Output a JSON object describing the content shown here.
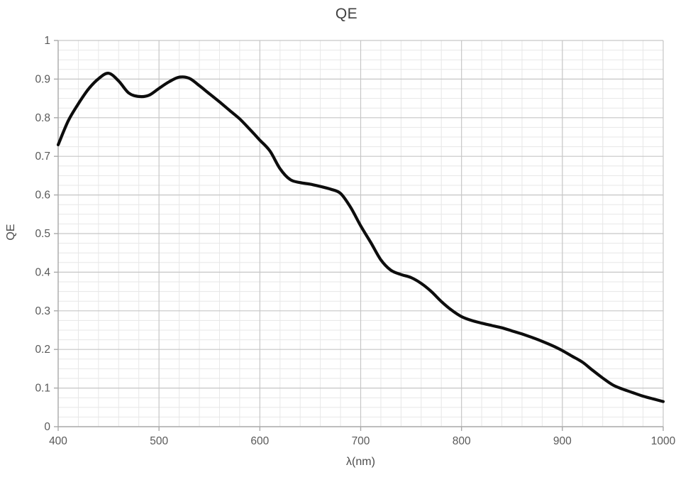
{
  "chart_data": {
    "type": "line",
    "title": "QE",
    "xlabel": "λ(nm)",
    "ylabel": "QE",
    "xlim": [
      400,
      1000
    ],
    "ylim": [
      0,
      1
    ],
    "grid": "major-and-minor",
    "legend": "none",
    "x_ticks": {
      "values": [
        400,
        500,
        600,
        700,
        800,
        900,
        1000
      ],
      "labels": [
        "400",
        "500",
        "600",
        "700",
        "800",
        "900",
        "1000"
      ]
    },
    "y_ticks": {
      "values": [
        0,
        0.1,
        0.2,
        0.3,
        0.4,
        0.5,
        0.6,
        0.7,
        0.8,
        0.9,
        1
      ],
      "labels": [
        "0",
        "0.1",
        "0.2",
        "0.3",
        "0.4",
        "0.5",
        "0.6",
        "0.7",
        "0.8",
        "0.9",
        "1"
      ]
    },
    "x_minor_step": 20,
    "y_minor_step": 0.025,
    "series": [
      {
        "name": "QE",
        "x": [
          400,
          410,
          420,
          430,
          440,
          450,
          460,
          470,
          480,
          490,
          500,
          510,
          520,
          530,
          540,
          550,
          560,
          570,
          580,
          590,
          600,
          610,
          620,
          630,
          640,
          650,
          660,
          670,
          680,
          690,
          700,
          710,
          720,
          730,
          740,
          750,
          760,
          770,
          780,
          790,
          800,
          810,
          820,
          830,
          840,
          850,
          860,
          870,
          880,
          890,
          900,
          910,
          920,
          930,
          940,
          950,
          960,
          970,
          980,
          990,
          1000
        ],
        "y": [
          0.73,
          0.792,
          0.836,
          0.874,
          0.901,
          0.915,
          0.895,
          0.864,
          0.855,
          0.858,
          0.876,
          0.893,
          0.905,
          0.902,
          0.883,
          0.862,
          0.841,
          0.819,
          0.797,
          0.77,
          0.742,
          0.714,
          0.668,
          0.64,
          0.632,
          0.628,
          0.622,
          0.615,
          0.604,
          0.568,
          0.52,
          0.477,
          0.432,
          0.405,
          0.394,
          0.386,
          0.371,
          0.35,
          0.324,
          0.302,
          0.285,
          0.275,
          0.268,
          0.262,
          0.256,
          0.248,
          0.24,
          0.231,
          0.221,
          0.21,
          0.197,
          0.182,
          0.167,
          0.146,
          0.126,
          0.108,
          0.097,
          0.088,
          0.079,
          0.072,
          0.065
        ]
      }
    ]
  },
  "style": {
    "line_color": "#0d0d0d",
    "line_width": 4.2,
    "title_color": "#404040",
    "axis_title_color": "#4a4a4a",
    "tick_label_color": "#595959",
    "axis_color": "#a9a9a9",
    "major_grid_color": "#c6c6c6",
    "minor_grid_color": "#e7e7e7",
    "background": "#ffffff"
  }
}
